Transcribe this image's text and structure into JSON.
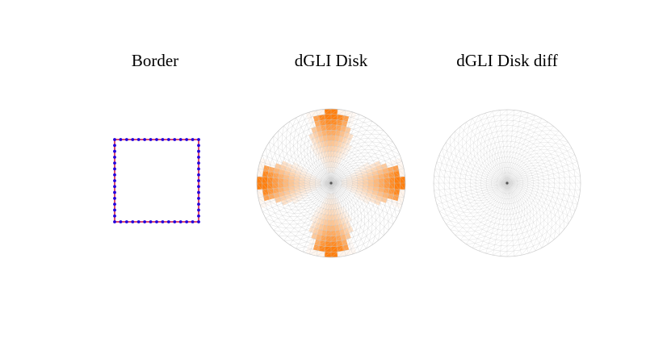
{
  "panels": {
    "border": {
      "title": "Border",
      "edge_color": "#cc0033",
      "node_color": "#2200dd",
      "nodes_per_side": 15
    },
    "disk": {
      "title": "dGLI Disk",
      "mesh_color": "#c8c8c8",
      "heat_color": "#ff7f0e",
      "lobes": 4,
      "center_color": "#555555"
    },
    "diff": {
      "title": "dGLI Disk diff",
      "mesh_color": "#d0d0d0",
      "center_color": "#555555"
    }
  },
  "mesh": {
    "rings": 14,
    "spokes": 64
  }
}
